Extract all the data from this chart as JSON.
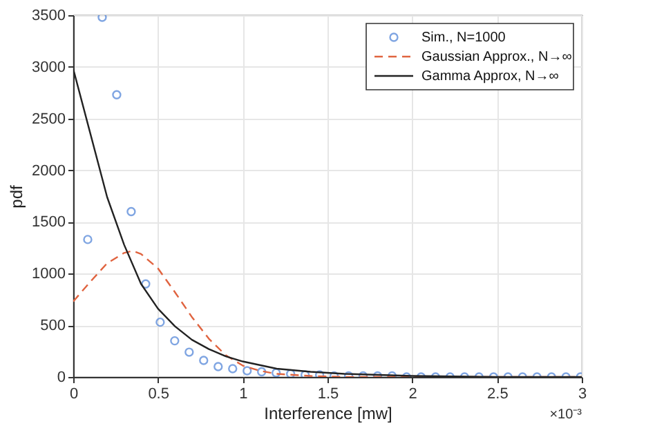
{
  "chart_data": {
    "type": "line",
    "xlabel": "Interference [mw]",
    "ylabel": "pdf",
    "xlim": [
      0,
      3
    ],
    "ylim": [
      0,
      3500
    ],
    "xticks": [
      0,
      0.5,
      1,
      1.5,
      2,
      2.5,
      3
    ],
    "yticks": [
      0,
      500,
      1000,
      1500,
      2000,
      2500,
      3000,
      3500
    ],
    "grid": true,
    "legend": "top right",
    "annotations": [
      "×10⁻³"
    ],
    "series": [
      {
        "name": "Sim., N=1000",
        "type": "scatter",
        "marker": "circle",
        "color": "#4a7fd6",
        "x": [
          0.0855,
          0.171,
          0.2565,
          0.342,
          0.4275,
          0.513,
          0.5985,
          0.684,
          0.7695,
          0.855,
          0.9405,
          1.026,
          1.1115,
          1.197,
          1.2825,
          1.368,
          1.4535,
          1.539,
          1.6245,
          1.71,
          1.7955,
          1.881,
          1.9665,
          2.052,
          2.1375,
          2.223,
          2.3085,
          2.394,
          2.4795,
          2.565,
          2.6505,
          2.736,
          2.8215,
          2.907,
          2.9925
        ],
        "values": [
          1330,
          3480,
          2730,
          1600,
          900,
          530,
          350,
          240,
          160,
          100,
          80,
          60,
          50,
          40,
          30,
          20,
          20,
          10,
          10,
          10,
          10,
          10,
          0,
          0,
          0,
          0,
          0,
          0,
          0,
          0,
          0,
          0,
          0,
          0,
          0
        ]
      },
      {
        "name": "Gaussian Approx., N→∞",
        "type": "line",
        "line_style": "dashed",
        "color": "#e0633f",
        "x": [
          0,
          0.1,
          0.2,
          0.3,
          0.35,
          0.4,
          0.5,
          0.6,
          0.7,
          0.8,
          0.9,
          1.0,
          1.1,
          1.2,
          1.4,
          1.6,
          2.0,
          3.0
        ],
        "values": [
          730,
          920,
          1100,
          1200,
          1220,
          1190,
          1050,
          820,
          580,
          370,
          210,
          110,
          60,
          30,
          10,
          0,
          0,
          0
        ]
      },
      {
        "name": "Gamma Approx, N→∞",
        "type": "line",
        "line_style": "solid",
        "color": "#222222",
        "x": [
          0,
          0.1,
          0.2,
          0.3,
          0.4,
          0.5,
          0.6,
          0.7,
          0.8,
          0.9,
          1.0,
          1.2,
          1.4,
          1.6,
          2.0,
          2.5,
          3.0
        ],
        "values": [
          2980,
          2360,
          1740,
          1280,
          900,
          660,
          490,
          360,
          270,
          200,
          150,
          80,
          50,
          30,
          10,
          0,
          0
        ]
      }
    ]
  }
}
